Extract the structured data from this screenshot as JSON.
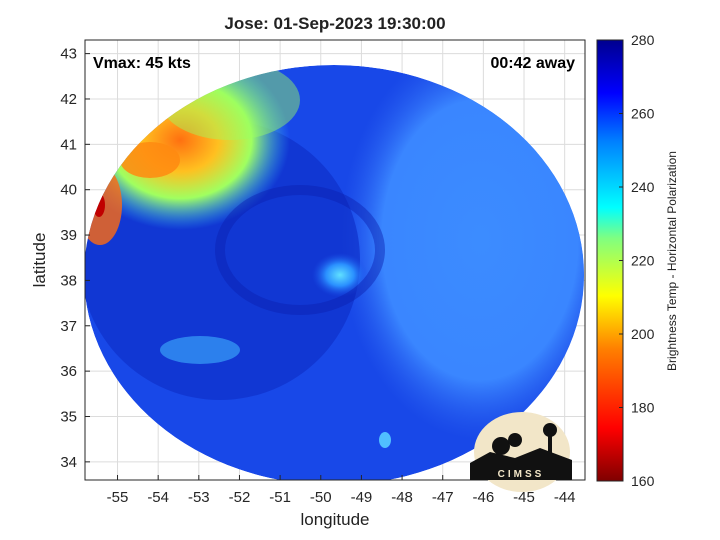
{
  "title": "Jose: 01-Sep-2023 19:30:00",
  "annotations": {
    "vmax": "Vmax: 45 kts",
    "away": "00:42 away"
  },
  "axes": {
    "xlabel": "longitude",
    "ylabel": "latitude",
    "xticks": [
      "-55",
      "-54",
      "-53",
      "-52",
      "-51",
      "-50",
      "-49",
      "-48",
      "-47",
      "-46",
      "-45",
      "-44"
    ],
    "yticks": [
      "43",
      "42",
      "41",
      "40",
      "39",
      "38",
      "37",
      "36",
      "35",
      "34"
    ],
    "xlim": [
      -55.8,
      -43.5
    ],
    "ylim": [
      33.6,
      43.3
    ],
    "grid": true
  },
  "colorbar": {
    "label": "Brightness Temp - Horizontal Polarization",
    "ticks": [
      "280",
      "260",
      "240",
      "220",
      "200",
      "180",
      "160"
    ],
    "range": [
      160,
      280
    ],
    "colormap": [
      "#7f0000",
      "#ff0000",
      "#ff8000",
      "#ffff00",
      "#80ff80",
      "#00ffff",
      "#0080ff",
      "#0000ff",
      "#00008f"
    ]
  },
  "logo": {
    "text": "CIMSS"
  },
  "storm": {
    "name": "Jose",
    "center_lon": -49.5,
    "center_lat": 38.0
  },
  "colors": {
    "swath_base": "#1040e0",
    "cold_core": "#3a8cff",
    "warm_edge": "#ff9a10"
  }
}
